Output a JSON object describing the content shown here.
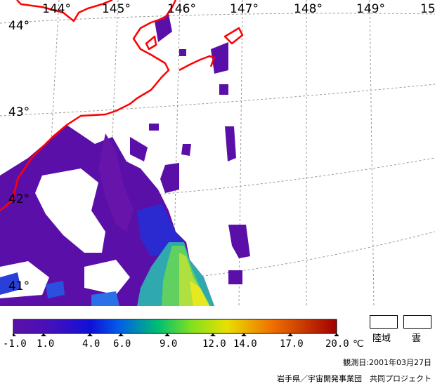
{
  "lon_labels": [
    "144°",
    "145°",
    "146°",
    "147°",
    "148°",
    "149°",
    "15"
  ],
  "lat_labels": [
    "44°",
    "43°",
    "42°",
    "41°"
  ],
  "colorbar": {
    "ticks": [
      "-1.0",
      "1.0",
      "4.0",
      "6.0",
      "9.0",
      "12.0",
      "14.0",
      "17.0",
      "20.0"
    ],
    "unit": "℃",
    "min": -1.0,
    "max": 20.0
  },
  "legend": {
    "land": "陸域",
    "cloud": "雲"
  },
  "observation_date": "観測日:2001年03月27日",
  "credit": "岩手県／宇宙開発事業団　共同プロジェクト",
  "colors": {
    "coastline": "#ff0000",
    "grid": "#999999"
  }
}
